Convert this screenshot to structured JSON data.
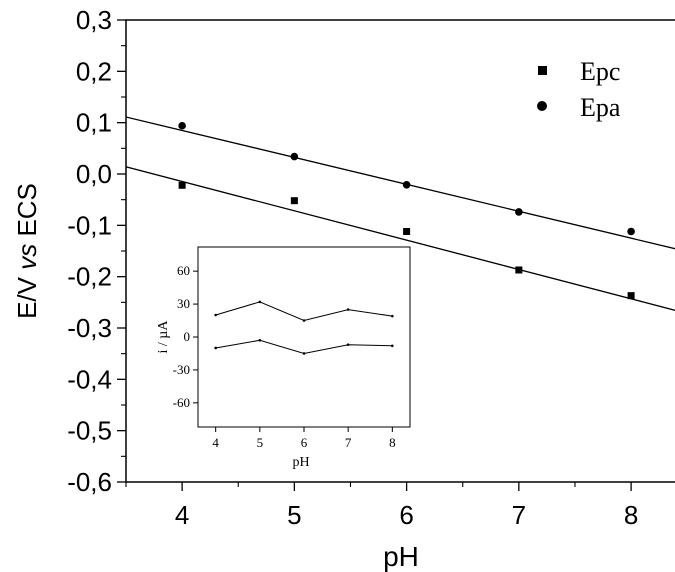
{
  "chart_data": [
    {
      "type": "scatter",
      "xlabel": "pH",
      "ylabel_parts": [
        "E/V ",
        "vs",
        " ECS"
      ],
      "xlim": [
        3.5,
        8.4
      ],
      "ylim": [
        -0.6,
        0.3
      ],
      "x_ticks": [
        4,
        5,
        6,
        7,
        8
      ],
      "x_tick_labels": [
        "4",
        "5",
        "6",
        "7",
        "8"
      ],
      "y_ticks": [
        0.3,
        0.2,
        0.1,
        0.0,
        -0.1,
        -0.2,
        -0.3,
        -0.4,
        -0.5,
        -0.6
      ],
      "y_tick_labels": [
        "0,3",
        "0,2",
        "0,1",
        "0,0",
        "-0,1",
        "-0,2",
        "-0,3",
        "-0,4",
        "-0,5",
        "-0,6"
      ],
      "legend_position": "top-right",
      "series": [
        {
          "name": "Epc",
          "marker": "square",
          "x": [
            4,
            5,
            6,
            7,
            8
          ],
          "y": [
            -0.022,
            -0.052,
            -0.112,
            -0.187,
            -0.237
          ],
          "fit_line": {
            "x": [
              3.5,
              8.4
            ],
            "y": [
              0.014,
              -0.266
            ]
          }
        },
        {
          "name": "Epa",
          "marker": "circle",
          "x": [
            4,
            5,
            6,
            7,
            8
          ],
          "y": [
            0.094,
            0.034,
            -0.021,
            -0.074,
            -0.112
          ],
          "fit_line": {
            "x": [
              3.5,
              8.4
            ],
            "y": [
              0.111,
              -0.146
            ]
          }
        }
      ]
    },
    {
      "type": "line",
      "xlabel": "pH",
      "ylabel": "i / µA",
      "xlim": [
        3.6,
        8.4
      ],
      "ylim": [
        -82,
        82
      ],
      "x_ticks": [
        4,
        5,
        6,
        7,
        8
      ],
      "x_tick_labels": [
        "4",
        "5",
        "6",
        "7",
        "8"
      ],
      "y_ticks": [
        60,
        30,
        0,
        -30,
        -60
      ],
      "y_tick_labels": [
        "60",
        "30",
        "0",
        "-30",
        "-60"
      ],
      "series": [
        {
          "x": [
            4,
            5,
            6,
            7,
            8
          ],
          "y": [
            20,
            32,
            15,
            25,
            19
          ]
        },
        {
          "x": [
            4,
            5,
            6,
            7,
            8
          ],
          "y": [
            -10,
            -3,
            -15,
            -7,
            -8
          ]
        }
      ]
    }
  ]
}
